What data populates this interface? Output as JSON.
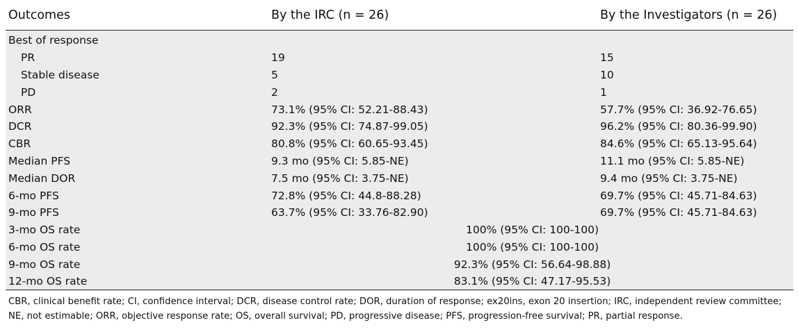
{
  "header": {
    "col1": "Outcomes",
    "col2": "By the IRC (n = 26)",
    "col3": "By the Investigators (n = 26)"
  },
  "rows": [
    {
      "label": "Best of response",
      "irc": "",
      "inv": ""
    },
    {
      "label": "PR",
      "irc": "19",
      "inv": "15"
    },
    {
      "label": "Stable disease",
      "irc": "5",
      "inv": "10"
    },
    {
      "label": "PD",
      "irc": "2",
      "inv": "1"
    },
    {
      "label": "ORR",
      "irc": "73.1% (95% CI: 52.21-88.43)",
      "inv": "57.7% (95% CI: 36.92-76.65)"
    },
    {
      "label": "DCR",
      "irc": "92.3% (95% CI: 74.87-99.05)",
      "inv": "96.2% (95% CI: 80.36-99.90)"
    },
    {
      "label": "CBR",
      "irc": "80.8% (95% CI: 60.65-93.45)",
      "inv": "84.6% (95% CI: 65.13-95.64)"
    },
    {
      "label": "Median PFS",
      "irc": "9.3 mo (95% CI: 5.85-NE)",
      "inv": "11.1 mo (95% CI: 5.85-NE)"
    },
    {
      "label": "Median DOR",
      "irc": "7.5 mo (95% CI: 3.75-NE)",
      "inv": "9.4 mo (95% CI: 3.75-NE)"
    },
    {
      "label": "6-mo PFS",
      "irc": "72.8% (95% CI: 44.8-88.28)",
      "inv": "69.7% (95% CI: 45.71-84.63)"
    },
    {
      "label": "9-mo PFS",
      "irc": "63.7% (95% CI: 33.76-82.90)",
      "inv": "69.7% (95% CI: 45.71-84.63)"
    },
    {
      "label": "3-mo OS rate",
      "combined": "100% (95% CI: 100-100)"
    },
    {
      "label": "6-mo OS rate",
      "combined": "100% (95% CI: 100-100)"
    },
    {
      "label": "9-mo OS rate",
      "combined": "92.3% (95% CI: 56.64-98.88)"
    },
    {
      "label": "12-mo OS rate",
      "combined": "83.1% (95% CI: 47.17-95.53)"
    }
  ],
  "footnote": "CBR, clinical benefit rate; CI, confidence interval; DCR, disease control rate; DOR, duration of response; ex20ins, exon 20 insertion; IRC, independent review committee; NE, not estimable; ORR, objective response rate; OS, overall survival; PD, progressive disease; PFS, progression-free survival; PR, partial response."
}
